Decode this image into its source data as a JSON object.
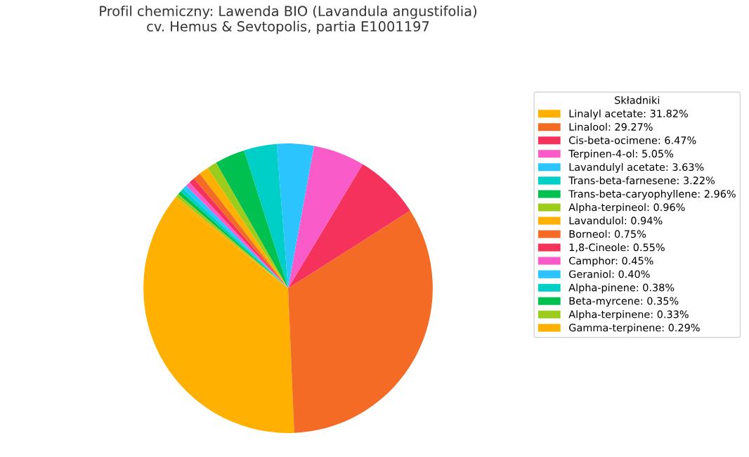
{
  "chart_data": {
    "type": "pie",
    "title": "Profil chemiczny: Lawenda BIO (Lavandula angustifolia)\ncv. Hemus & Sevtopolis, partia E1001197",
    "legend_title": "Składniki",
    "legend": "right",
    "categories": [
      "Linalyl acetate: 31.82%",
      "Linalool: 29.27%",
      "Cis-beta-ocimene: 6.47%",
      "Terpinen-4-ol: 5.05%",
      "Lavandulyl acetate: 3.63%",
      "Trans-beta-farnesene: 3.22%",
      "Trans-beta-caryophyllene: 2.96%",
      "Alpha-terpineol: 0.96%",
      "Lavandulol: 0.94%",
      "Borneol: 0.75%",
      "1,8-Cineole: 0.55%",
      "Camphor: 0.45%",
      "Geraniol: 0.40%",
      "Alpha-pinene: 0.38%",
      "Beta-myrcene: 0.35%",
      "Alpha-terpinene: 0.33%",
      "Gamma-terpinene: 0.29%"
    ],
    "values": [
      31.82,
      29.27,
      6.47,
      5.05,
      3.63,
      3.22,
      2.96,
      0.96,
      0.94,
      0.75,
      0.55,
      0.45,
      0.4,
      0.38,
      0.35,
      0.33,
      0.29
    ],
    "colors": [
      "#ffb000",
      "#f46b25",
      "#f5325b",
      "#f95bc8",
      "#2bc4ff",
      "#00cfc8",
      "#00c04f",
      "#9ccc1c",
      "#ffb000",
      "#f46b25",
      "#f5325b",
      "#f95bc8",
      "#2bc4ff",
      "#00cfc8",
      "#00c04f",
      "#9ccc1c",
      "#ffb000"
    ]
  }
}
